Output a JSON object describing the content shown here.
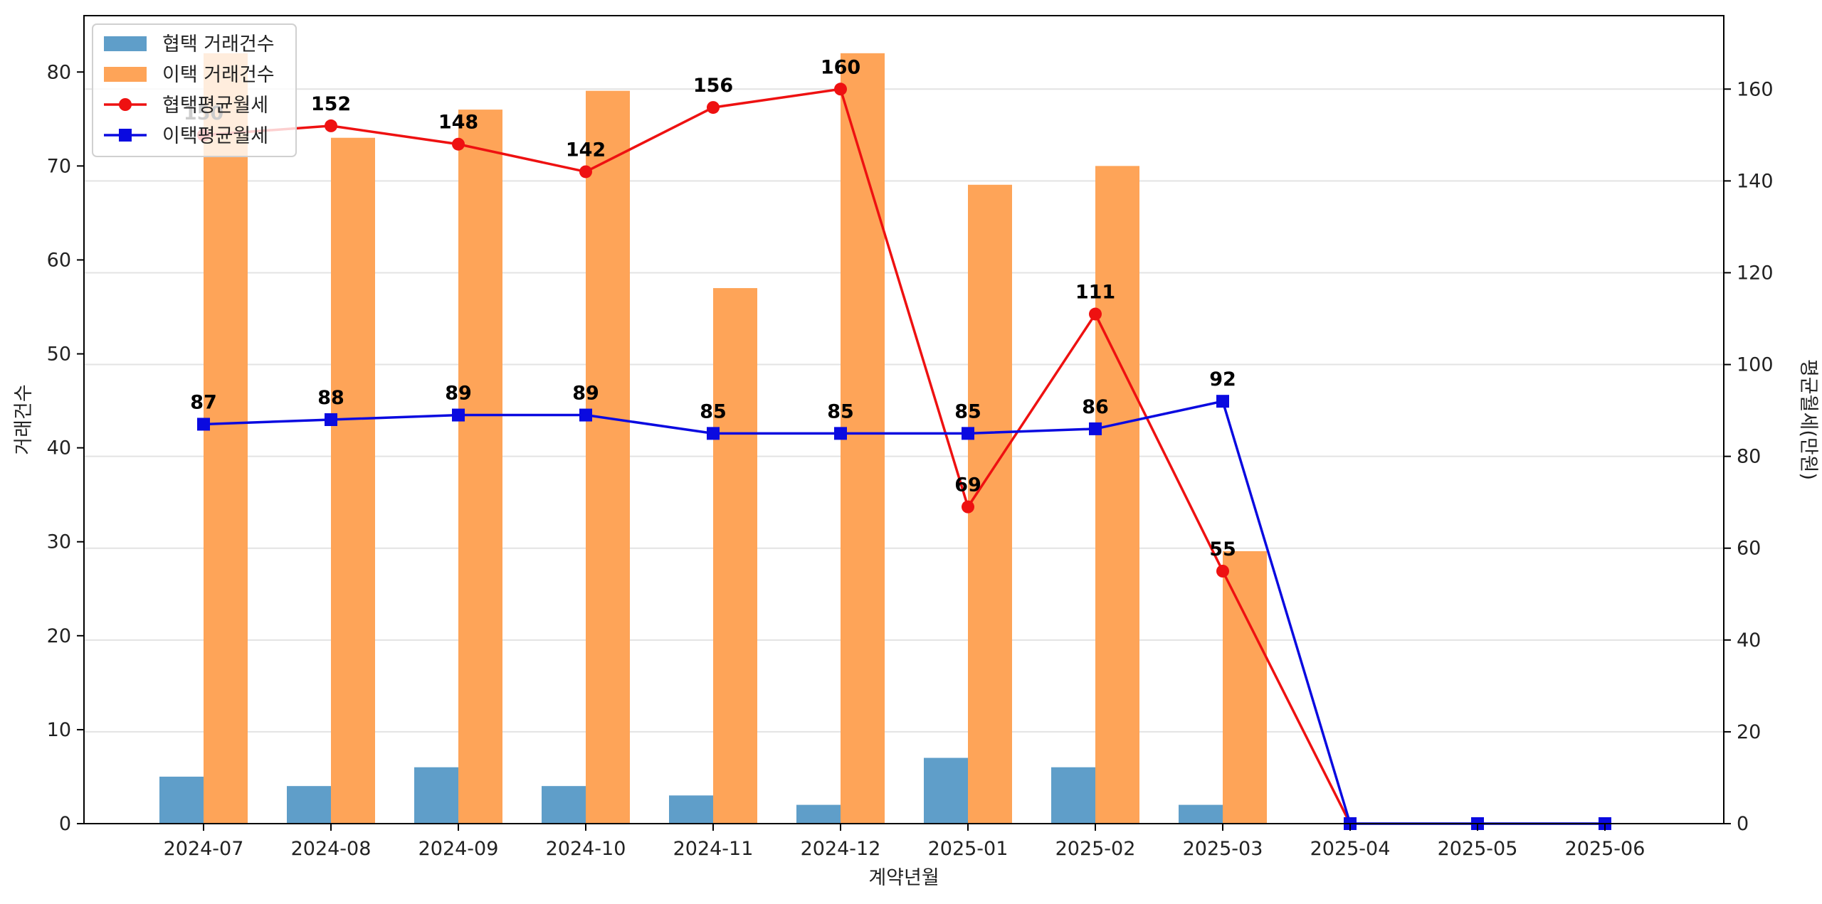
{
  "chart_data": {
    "type": "bar",
    "categories": [
      "2024-07",
      "2024-08",
      "2024-09",
      "2024-10",
      "2024-11",
      "2024-12",
      "2025-01",
      "2025-02",
      "2025-03",
      "2025-04",
      "2025-05",
      "2025-06"
    ],
    "xlabel": "계약년월",
    "ylabel": "거래건수",
    "y2label": "평균월세(만원)",
    "ylim": [
      0,
      86
    ],
    "y2lim": [
      0,
      176
    ],
    "yticks": [
      0,
      10,
      20,
      30,
      40,
      50,
      60,
      70,
      80
    ],
    "y2ticks": [
      0,
      20,
      40,
      60,
      80,
      100,
      120,
      140,
      160
    ],
    "grid": "horizontal",
    "legend_position": "top-left",
    "bar_series": [
      {
        "name": "협택 거래건수",
        "color": "#5f9ec9",
        "values": [
          5,
          4,
          6,
          4,
          3,
          2,
          7,
          6,
          2,
          null,
          null,
          null
        ]
      },
      {
        "name": "이택 거래건수",
        "color": "#fea458",
        "values": [
          82,
          73,
          76,
          78,
          57,
          82,
          68,
          70,
          29,
          null,
          null,
          null
        ]
      }
    ],
    "line_series": [
      {
        "name": "협택평균월세",
        "color": "#ee1111",
        "marker": "circle",
        "values": [
          150,
          152,
          148,
          142,
          156,
          160,
          69,
          111,
          55,
          0,
          null,
          null
        ],
        "labels": [
          "150",
          "152",
          "148",
          "142",
          "156",
          "160",
          "69",
          "111",
          "55",
          "",
          "",
          ""
        ]
      },
      {
        "name": "이택평균월세",
        "color": "#0a0ae0",
        "marker": "square",
        "values": [
          87,
          88,
          89,
          89,
          85,
          85,
          85,
          86,
          92,
          0,
          0,
          0
        ],
        "labels": [
          "87",
          "88",
          "89",
          "89",
          "85",
          "85",
          "85",
          "86",
          "92",
          "",
          "",
          ""
        ]
      }
    ]
  }
}
